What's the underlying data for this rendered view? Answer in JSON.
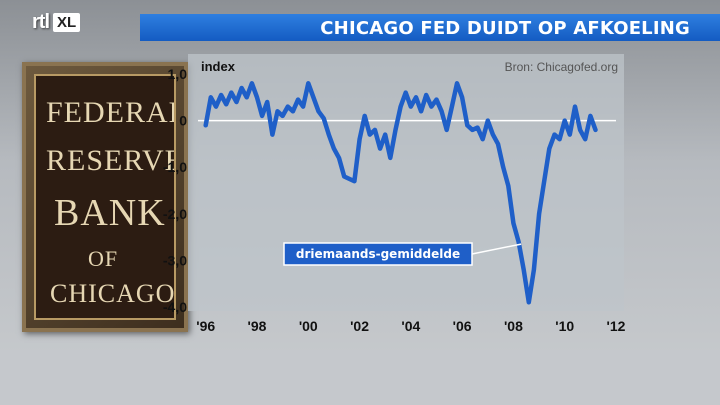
{
  "header": {
    "logo_rtl": "rtl",
    "logo_xl": "XL",
    "title": "CHICAGO FED DUIDT OP AFKOELING"
  },
  "plaque": {
    "line1": "FEDERAL",
    "line2": "RESERVE",
    "line3": "BANK",
    "line4": "OF",
    "line5": "CHICAGO"
  },
  "colors": {
    "title_bar": "#1f6fd6",
    "line": "#1f5fc8",
    "label_box": "#1f5fc8"
  },
  "chart_data": {
    "type": "line",
    "ylabel": "index",
    "source": "Bron: Chicagofed.org",
    "annotation": "driemaands-gemiddelde",
    "ylim": [
      -4.0,
      1.0
    ],
    "xlim": [
      1995.7,
      2012.0
    ],
    "y_ticks": [
      "1,0",
      "0",
      "-1,0",
      "-2,0",
      "-3,0",
      "-4,0"
    ],
    "y_tick_values": [
      1.0,
      0,
      -1.0,
      -2.0,
      -3.0,
      -4.0
    ],
    "x_ticks": [
      "'96",
      "'98",
      "'00",
      "'02",
      "'04",
      "'06",
      "'08",
      "'10",
      "'12"
    ],
    "x_tick_values": [
      1996,
      1998,
      2000,
      2002,
      2004,
      2006,
      2008,
      2010,
      2012
    ],
    "grid": false,
    "series": [
      {
        "x": [
          1996.0,
          1996.2,
          1996.4,
          1996.6,
          1996.8,
          1997.0,
          1997.2,
          1997.4,
          1997.6,
          1997.8,
          1998.0,
          1998.2,
          1998.4,
          1998.6,
          1998.8,
          1999.0,
          1999.2,
          1999.4,
          1999.6,
          1999.8,
          2000.0,
          2000.2,
          2000.4,
          2000.6,
          2000.8,
          2001.0,
          2001.2,
          2001.4,
          2001.6,
          2001.8,
          2002.0,
          2002.2,
          2002.4,
          2002.6,
          2002.8,
          2003.0,
          2003.2,
          2003.4,
          2003.6,
          2003.8,
          2004.0,
          2004.2,
          2004.4,
          2004.6,
          2004.8,
          2005.0,
          2005.2,
          2005.4,
          2005.6,
          2005.8,
          2006.0,
          2006.2,
          2006.4,
          2006.6,
          2006.8,
          2007.0,
          2007.2,
          2007.4,
          2007.6,
          2007.8,
          2008.0,
          2008.2,
          2008.4,
          2008.6,
          2008.8,
          2009.0,
          2009.2,
          2009.4,
          2009.6,
          2009.8,
          2010.0,
          2010.2,
          2010.4,
          2010.6,
          2010.8,
          2011.0,
          2011.2
        ],
        "y": [
          -0.1,
          0.5,
          0.3,
          0.55,
          0.35,
          0.6,
          0.4,
          0.7,
          0.5,
          0.8,
          0.5,
          0.1,
          0.4,
          -0.3,
          0.2,
          0.1,
          0.3,
          0.2,
          0.45,
          0.3,
          0.8,
          0.5,
          0.2,
          0.05,
          -0.3,
          -0.6,
          -0.8,
          -1.2,
          -1.25,
          -1.3,
          -0.4,
          0.1,
          -0.3,
          -0.2,
          -0.6,
          -0.3,
          -0.8,
          -0.2,
          0.3,
          0.6,
          0.3,
          0.5,
          0.2,
          0.55,
          0.3,
          0.45,
          0.2,
          -0.2,
          0.3,
          0.8,
          0.5,
          -0.1,
          -0.2,
          -0.15,
          -0.4,
          0.0,
          -0.3,
          -0.5,
          -1.0,
          -1.4,
          -2.2,
          -2.6,
          -3.2,
          -3.9,
          -3.2,
          -2.0,
          -1.3,
          -0.6,
          -0.3,
          -0.4,
          0.0,
          -0.3,
          0.3,
          -0.2,
          -0.4,
          0.1,
          -0.2
        ]
      }
    ]
  }
}
